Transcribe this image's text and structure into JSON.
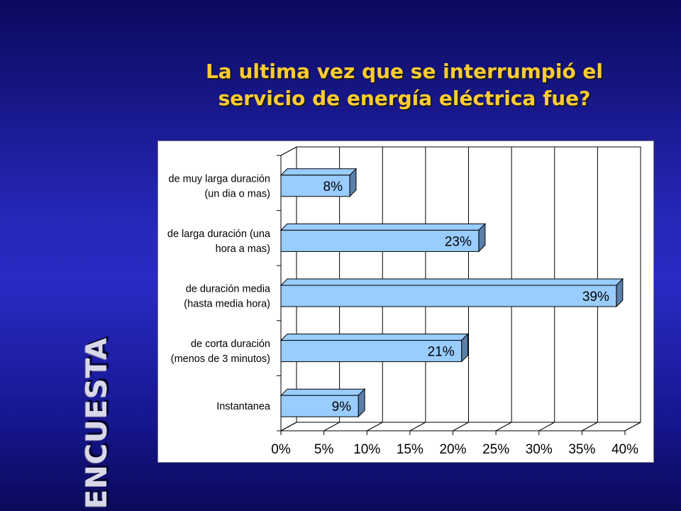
{
  "title": {
    "line1": "La ultima vez que se interrumpió el",
    "line2": "servicio de energía eléctrica fue?"
  },
  "side_label": "ENCUESTA",
  "colors": {
    "bar_fill": "#99ccff",
    "bar_side": "#5a7fa8",
    "title_text": "#ffcc33"
  },
  "chart_data": {
    "type": "bar",
    "orientation": "horizontal",
    "categories": [
      [
        "de muy larga duración",
        "(un dia o mas)"
      ],
      [
        "de larga duración (una",
        "hora a mas)"
      ],
      [
        "de duración media",
        "(hasta media hora)"
      ],
      [
        "de corta duración",
        "(menos de 3 minutos)"
      ],
      [
        "Instantanea"
      ]
    ],
    "values": [
      8,
      23,
      39,
      21,
      9
    ],
    "data_labels": [
      "8%",
      "23%",
      "39%",
      "21%",
      "9%"
    ],
    "xlim": [
      0,
      40
    ],
    "xticks": [
      0,
      5,
      10,
      15,
      20,
      25,
      30,
      35,
      40
    ],
    "xtick_labels": [
      "0%",
      "5%",
      "10%",
      "15%",
      "20%",
      "25%",
      "30%",
      "35%",
      "40%"
    ],
    "grid": true,
    "style": "3d"
  }
}
